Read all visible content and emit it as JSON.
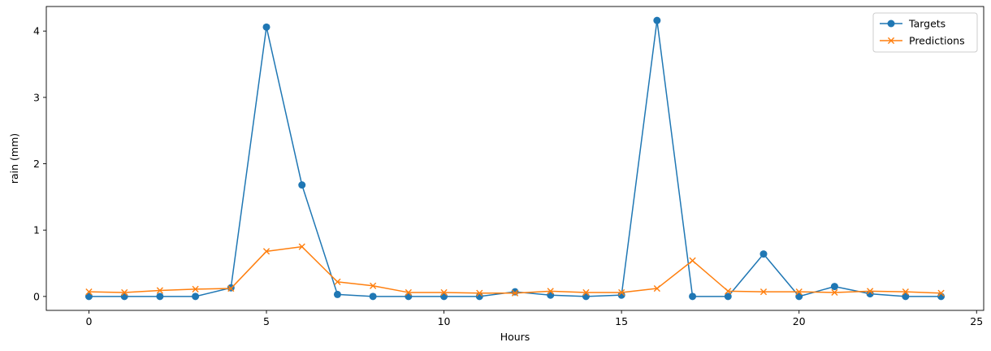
{
  "chart_data": {
    "type": "line",
    "xlabel": "Hours",
    "ylabel": "rain (mm)",
    "xlim": [
      -1.2,
      25.2
    ],
    "ylim": [
      -0.21,
      4.37
    ],
    "xticks": [
      0,
      5,
      10,
      15,
      20,
      25
    ],
    "yticks": [
      0,
      1,
      2,
      3,
      4
    ],
    "grid": false,
    "legend_position": "top-right",
    "x": [
      0,
      1,
      2,
      3,
      4,
      5,
      6,
      7,
      8,
      9,
      10,
      11,
      12,
      13,
      14,
      15,
      16,
      17,
      18,
      19,
      20,
      21,
      22,
      23,
      24
    ],
    "series": [
      {
        "name": "Targets",
        "color": "#1f77b4",
        "marker": "circle",
        "values": [
          0.0,
          0.0,
          0.0,
          0.0,
          0.13,
          4.06,
          1.68,
          0.03,
          0.0,
          0.0,
          0.0,
          0.0,
          0.07,
          0.02,
          0.0,
          0.02,
          4.16,
          0.0,
          0.0,
          0.64,
          0.0,
          0.15,
          0.04,
          0.0,
          0.0
        ]
      },
      {
        "name": "Predictions",
        "color": "#ff7f0e",
        "marker": "x",
        "values": [
          0.07,
          0.06,
          0.09,
          0.11,
          0.12,
          0.68,
          0.75,
          0.22,
          0.16,
          0.06,
          0.06,
          0.05,
          0.05,
          0.08,
          0.06,
          0.06,
          0.12,
          0.54,
          0.08,
          0.07,
          0.07,
          0.06,
          0.08,
          0.07,
          0.05
        ]
      }
    ]
  }
}
